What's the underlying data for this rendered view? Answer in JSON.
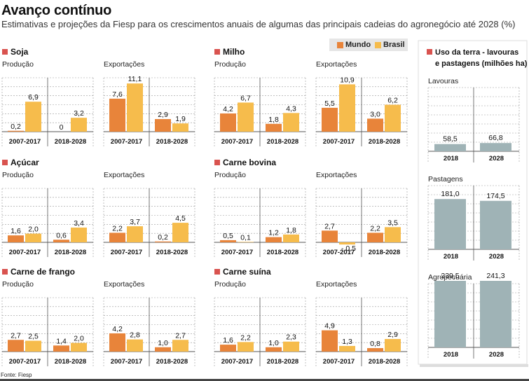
{
  "title": "Avanço contínuo",
  "subtitle": "Estimativas e projeções da Fiesp para os crescimentos anuais de algumas das principais cadeias do agronegócio até 2028 (%)",
  "legend": {
    "mundo": "Mundo",
    "brasil": "Brasil"
  },
  "colors": {
    "mundo": "#e8843a",
    "brasil": "#f6bc4c",
    "land": "#9fb3b6",
    "square": "#d9534f",
    "grid": "#9a9a9a",
    "axis": "#555555"
  },
  "source": "Fonte: Fiesp",
  "chart_data": [
    {
      "type": "bar",
      "title": "Soja",
      "panels": [
        {
          "subtitle": "Produção",
          "categories": [
            "2007-2017",
            "2018-2028"
          ],
          "series": [
            {
              "name": "Mundo",
              "values": [
                0.2,
                0
              ]
            },
            {
              "name": "Brasil",
              "values": [
                6.9,
                3.2
              ]
            }
          ],
          "labels": [
            [
              "0,2",
              "6,9"
            ],
            [
              "0",
              "3,2"
            ]
          ],
          "ylim": [
            -1.5,
            11.1
          ]
        },
        {
          "subtitle": "Exportações",
          "categories": [
            "2007-2017",
            "2018-2028"
          ],
          "series": [
            {
              "name": "Mundo",
              "values": [
                7.6,
                2.9
              ]
            },
            {
              "name": "Brasil",
              "values": [
                11.1,
                1.9
              ]
            }
          ],
          "labels": [
            [
              "7,6",
              "11,1"
            ],
            [
              "2,9",
              "1,9"
            ]
          ],
          "ylim": [
            -1.5,
            11.1
          ]
        }
      ]
    },
    {
      "type": "bar",
      "title": "Milho",
      "panels": [
        {
          "subtitle": "Produção",
          "categories": [
            "2007-2017",
            "2018-2028"
          ],
          "series": [
            {
              "name": "Mundo",
              "values": [
                4.2,
                1.8
              ]
            },
            {
              "name": "Brasil",
              "values": [
                6.7,
                4.3
              ]
            }
          ],
          "labels": [
            [
              "4,2",
              "6,7"
            ],
            [
              "1,8",
              "4,3"
            ]
          ],
          "ylim": [
            -1.5,
            11.1
          ]
        },
        {
          "subtitle": "Exportações",
          "categories": [
            "2007-2017",
            "2018-2028"
          ],
          "series": [
            {
              "name": "Mundo",
              "values": [
                5.5,
                3.0
              ]
            },
            {
              "name": "Brasil",
              "values": [
                10.9,
                6.2
              ]
            }
          ],
          "labels": [
            [
              "5,5",
              "10,9"
            ],
            [
              "3,0",
              "6,2"
            ]
          ],
          "ylim": [
            -1.5,
            11.1
          ]
        }
      ]
    },
    {
      "type": "bar",
      "title": "Açúcar",
      "panels": [
        {
          "subtitle": "Produção",
          "categories": [
            "2007-2017",
            "2018-2028"
          ],
          "series": [
            {
              "name": "Mundo",
              "values": [
                1.6,
                0.6
              ]
            },
            {
              "name": "Brasil",
              "values": [
                2.0,
                3.4
              ]
            }
          ],
          "labels": [
            [
              "1,6",
              "2,0"
            ],
            [
              "0,6",
              "3,4"
            ]
          ],
          "ylim": [
            -1.5,
            11.1
          ]
        },
        {
          "subtitle": "Exportações",
          "categories": [
            "2007-2017",
            "2018-2028"
          ],
          "series": [
            {
              "name": "Mundo",
              "values": [
                2.2,
                0.2
              ]
            },
            {
              "name": "Brasil",
              "values": [
                3.7,
                4.5
              ]
            }
          ],
          "labels": [
            [
              "2,2",
              "3,7"
            ],
            [
              "0,2",
              "4,5"
            ]
          ],
          "ylim": [
            -1.5,
            11.1
          ]
        }
      ]
    },
    {
      "type": "bar",
      "title": "Carne bovina",
      "panels": [
        {
          "subtitle": "Produção",
          "categories": [
            "2007-2017",
            "2018-2028"
          ],
          "series": [
            {
              "name": "Mundo",
              "values": [
                0.5,
                1.2
              ]
            },
            {
              "name": "Brasil",
              "values": [
                0.1,
                1.8
              ]
            }
          ],
          "labels": [
            [
              "0,5",
              "0,1"
            ],
            [
              "1,2",
              "1,8"
            ]
          ],
          "ylim": [
            -1.5,
            11.1
          ]
        },
        {
          "subtitle": "Exportações",
          "categories": [
            "2007-2017",
            "2018-2028"
          ],
          "series": [
            {
              "name": "Mundo",
              "values": [
                2.7,
                2.2
              ]
            },
            {
              "name": "Brasil",
              "values": [
                -0.5,
                3.5
              ]
            }
          ],
          "labels": [
            [
              "2,7",
              "- 0,5"
            ],
            [
              "2,2",
              "3,5"
            ]
          ],
          "ylim": [
            -1.5,
            11.1
          ]
        }
      ]
    },
    {
      "type": "bar",
      "title": "Carne de frango",
      "panels": [
        {
          "subtitle": "Produção",
          "categories": [
            "2007-2017",
            "2018-2028"
          ],
          "series": [
            {
              "name": "Mundo",
              "values": [
                2.7,
                1.4
              ]
            },
            {
              "name": "Brasil",
              "values": [
                2.5,
                2.0
              ]
            }
          ],
          "labels": [
            [
              "2,7",
              "2,5"
            ],
            [
              "1,4",
              "2,0"
            ]
          ],
          "ylim": [
            -1.5,
            11.1
          ]
        },
        {
          "subtitle": "Exportações",
          "categories": [
            "2007-2017",
            "2018-2028"
          ],
          "series": [
            {
              "name": "Mundo",
              "values": [
                4.2,
                1.0
              ]
            },
            {
              "name": "Brasil",
              "values": [
                2.8,
                2.7
              ]
            }
          ],
          "labels": [
            [
              "4,2",
              "2,8"
            ],
            [
              "1,0",
              "2,7"
            ]
          ],
          "ylim": [
            -1.5,
            11.1
          ]
        }
      ]
    },
    {
      "type": "bar",
      "title": "Carne suína",
      "panels": [
        {
          "subtitle": "Produção",
          "categories": [
            "2007-2017",
            "2018-2028"
          ],
          "series": [
            {
              "name": "Mundo",
              "values": [
                1.6,
                1.0
              ]
            },
            {
              "name": "Brasil",
              "values": [
                2.2,
                2.3
              ]
            }
          ],
          "labels": [
            [
              "1,6",
              "2,2"
            ],
            [
              "1,0",
              "2,3"
            ]
          ],
          "ylim": [
            -1.5,
            11.1
          ]
        },
        {
          "subtitle": "Exportações",
          "categories": [
            "2007-2017",
            "2018-2028"
          ],
          "series": [
            {
              "name": "Mundo",
              "values": [
                4.9,
                0.8
              ]
            },
            {
              "name": "Brasil",
              "values": [
                1.3,
                2.9
              ]
            }
          ],
          "labels": [
            [
              "4,9",
              "1,3"
            ],
            [
              "0,8",
              "2,9"
            ]
          ],
          "ylim": [
            -1.5,
            11.1
          ]
        }
      ]
    },
    {
      "type": "bar",
      "title": "Uso da terra - lavouras e pastagens (milhões ha)",
      "panels": [
        {
          "subtitle": "Lavouras",
          "categories": [
            "2018",
            "2028"
          ],
          "values": [
            58.5,
            66.8
          ],
          "labels": [
            "58,5",
            "66,8"
          ],
          "ylim": [
            0,
            245
          ]
        },
        {
          "subtitle": "Pastagens",
          "categories": [
            "2018",
            "2028"
          ],
          "values": [
            181.0,
            174.5
          ],
          "labels": [
            "181,0",
            "174,5"
          ],
          "ylim": [
            0,
            245
          ]
        },
        {
          "subtitle": "Agropecuária",
          "categories": [
            "2018",
            "2028"
          ],
          "values": [
            239.5,
            241.3
          ],
          "labels": [
            "239,5",
            "241,3"
          ],
          "ylim": [
            0,
            245
          ]
        }
      ]
    }
  ]
}
